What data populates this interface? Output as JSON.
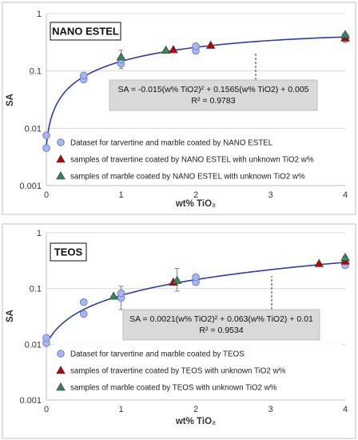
{
  "chart_data": [
    {
      "type": "scatter",
      "title": "NANO ESTEL",
      "xlabel": "wt% TiO₂",
      "ylabel": "SA",
      "xlim": [
        0,
        4
      ],
      "ylim": [
        0.001,
        1
      ],
      "yscale": "log",
      "x_ticks": [
        "0",
        "1",
        "2",
        "3",
        "4"
      ],
      "y_ticks": [
        "0.001",
        "0.01",
        "0.1",
        "1"
      ],
      "grid": "horizontal",
      "legend_position": "bottom-right",
      "equation_lines": [
        "SA = -0.015(w% TiO2)² + 0.1565(w% TiO2) + 0.005",
        "R² = 0.9783"
      ],
      "fit": {
        "a": -0.015,
        "b": 0.1565,
        "c": 0.005
      },
      "series": [
        {
          "name": "Dataset for tarvertine and marble coated by NANO ESTEL",
          "marker": "circle",
          "color": "#a9b8ec",
          "points": [
            {
              "x": 0,
              "y": 0.0045
            },
            {
              "x": 0,
              "y": 0.0075
            },
            {
              "x": 0.5,
              "y": 0.071
            },
            {
              "x": 0.5,
              "y": 0.083
            },
            {
              "x": 1,
              "y": 0.135
            },
            {
              "x": 1,
              "y": 0.158
            },
            {
              "x": 2,
              "y": 0.225
            },
            {
              "x": 2,
              "y": 0.27
            },
            {
              "x": 4,
              "y": 0.36
            },
            {
              "x": 4,
              "y": 0.4
            }
          ]
        },
        {
          "name": "samples of travertine coated by NANO ESTEL with unknown TiO2 w%",
          "marker": "triangle",
          "color": "#c00000",
          "points": [
            {
              "x": 1.7,
              "y": 0.235
            },
            {
              "x": 2.2,
              "y": 0.28
            },
            {
              "x": 4,
              "y": 0.375
            }
          ]
        },
        {
          "name": "samples of marble coated by NANO ESTEL with unknown TiO2 w%",
          "marker": "triangle",
          "color": "#2e8b57",
          "points": [
            {
              "x": 1,
              "y": 0.175
            },
            {
              "x": 1.6,
              "y": 0.23
            },
            {
              "x": 4,
              "y": 0.43
            }
          ]
        }
      ],
      "error_bars": [
        {
          "x": 1,
          "y": 0.155,
          "low": 0.11,
          "high": 0.23
        },
        {
          "x": 2,
          "y": 0.25,
          "low": 0.21,
          "high": 0.3
        },
        {
          "x": 4,
          "y": 0.39,
          "low": 0.34,
          "high": 0.45
        }
      ]
    },
    {
      "type": "scatter",
      "title": "TEOS",
      "xlabel": "wt% TiO₂",
      "ylabel": "SA",
      "xlim": [
        0,
        4
      ],
      "ylim": [
        0.001,
        1
      ],
      "yscale": "log",
      "x_ticks": [
        "0",
        "1",
        "2",
        "3",
        "4"
      ],
      "y_ticks": [
        "0.001",
        "0.01",
        "0.1",
        "1"
      ],
      "grid": "horizontal",
      "legend_position": "bottom-right",
      "equation_lines": [
        "SA = 0.0021(w% TiO2)² + 0.063(w% TiO2) + 0.01",
        "R² = 0.9534"
      ],
      "fit": {
        "a": 0.0021,
        "b": 0.063,
        "c": 0.01
      },
      "series": [
        {
          "name": "Dataset for tarvertine and marble coated by TEOS",
          "marker": "circle",
          "color": "#a9b8ec",
          "points": [
            {
              "x": 0,
              "y": 0.0105
            },
            {
              "x": 0,
              "y": 0.013
            },
            {
              "x": 0.5,
              "y": 0.035
            },
            {
              "x": 0.5,
              "y": 0.057
            },
            {
              "x": 1,
              "y": 0.068
            },
            {
              "x": 1,
              "y": 0.082
            },
            {
              "x": 2,
              "y": 0.13
            },
            {
              "x": 2,
              "y": 0.16
            },
            {
              "x": 4,
              "y": 0.26
            },
            {
              "x": 4,
              "y": 0.31
            }
          ]
        },
        {
          "name": "samples of travertine coated by TEOS with unknown TiO2 w%",
          "marker": "triangle",
          "color": "#c00000",
          "points": [
            {
              "x": 1.7,
              "y": 0.13
            },
            {
              "x": 3.65,
              "y": 0.28
            },
            {
              "x": 4,
              "y": 0.31
            }
          ]
        },
        {
          "name": "samples of marble coated by TEOS with unknown TiO2 w%",
          "marker": "triangle",
          "color": "#2e8b57",
          "points": [
            {
              "x": 0.9,
              "y": 0.073
            },
            {
              "x": 1.75,
              "y": 0.14
            },
            {
              "x": 4,
              "y": 0.36
            }
          ]
        }
      ],
      "error_bars": [
        {
          "x": 1,
          "y": 0.075,
          "low": 0.042,
          "high": 0.11
        },
        {
          "x": 1.75,
          "y": 0.14,
          "low": 0.09,
          "high": 0.23
        },
        {
          "x": 4,
          "y": 0.32,
          "low": 0.26,
          "high": 0.38
        }
      ]
    }
  ]
}
